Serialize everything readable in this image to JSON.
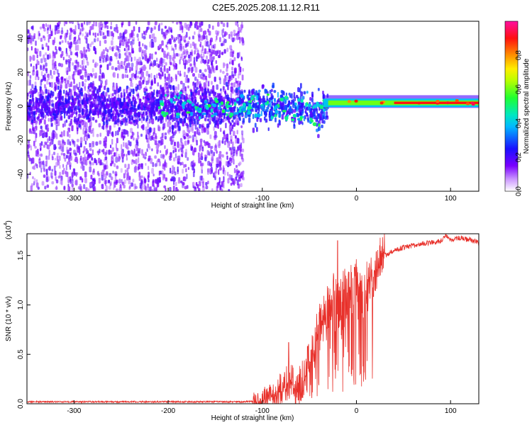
{
  "title": "C2E5.2025.208.11.12.R11",
  "colors": {
    "snr_line": "#e8302a",
    "spectrogram_noise": "#7a28e0",
    "spectrogram_peak": "#ff2020"
  },
  "colorbar": {
    "label": "Normalized spectral amplitude",
    "ticks": [
      "0.0",
      "0.2",
      "0.4",
      "0.6",
      "0.8"
    ],
    "tick_values": [
      0.0,
      0.2,
      0.4,
      0.6,
      0.8
    ],
    "range": [
      0,
      1
    ],
    "colormap": "rainbow (white → violet → blue → cyan → green → yellow → orange → red → magenta)"
  },
  "chart_data": [
    {
      "type": "heatmap",
      "xlabel": "Height of straight line (km)",
      "ylabel": "Frequency (Hz)",
      "xlim": [
        -350,
        130
      ],
      "ylim": [
        -50,
        50
      ],
      "xticks": [
        -300,
        -200,
        -100,
        0,
        100
      ],
      "xtick_labels": [
        "-300",
        "-200",
        "-100",
        "0",
        "100"
      ],
      "yticks": [
        -40,
        -20,
        0,
        20,
        40
      ],
      "ytick_labels": [
        "-40",
        "-20",
        "0",
        "20",
        "40"
      ],
      "description_of_signal": {
        "noise_region_x": [
          -350,
          -120
        ],
        "main_band_center_hz": 0,
        "strong_line_x": [
          -35,
          130
        ],
        "strong_line_freq_hz": 2
      },
      "grid": false
    },
    {
      "type": "line",
      "xlabel": "Height of straight line (km)",
      "ylabel": "SNR (10 * v/v)",
      "y_multiplier_label": "(x10",
      "y_multiplier_exp": "4",
      "xlim": [
        -350,
        130
      ],
      "ylim": [
        0,
        1.72
      ],
      "xticks": [
        -300,
        -200,
        -100,
        0,
        100
      ],
      "xtick_labels": [
        "-300",
        "-200",
        "-100",
        "0",
        "100"
      ],
      "yticks": [
        0.0,
        0.5,
        1.0,
        1.5
      ],
      "ytick_labels": [
        "0.0",
        "0.5",
        "1.0",
        "1.5"
      ],
      "series": [
        {
          "x": [
            -350,
            -300,
            -250,
            -200,
            -150,
            -120,
            -100,
            -90,
            -80,
            -75,
            -70,
            -65,
            -60,
            -55,
            -50,
            -45,
            -40,
            -35,
            -30,
            -25,
            -20,
            -15,
            -10,
            -5,
            0,
            5,
            10,
            15,
            20,
            25,
            30,
            40,
            50,
            60,
            70,
            80,
            90,
            95,
            100,
            110,
            120,
            130
          ],
          "y": [
            0.02,
            0.02,
            0.02,
            0.02,
            0.02,
            0.02,
            0.03,
            0.08,
            0.15,
            0.2,
            0.25,
            0.12,
            0.2,
            0.3,
            0.42,
            0.55,
            0.75,
            0.9,
            1.0,
            1.05,
            1.0,
            1.05,
            1.1,
            1.15,
            1.18,
            1.15,
            1.2,
            1.25,
            1.35,
            1.45,
            1.5,
            1.55,
            1.58,
            1.6,
            1.62,
            1.63,
            1.65,
            1.7,
            1.65,
            1.68,
            1.66,
            1.63
          ],
          "peaks": [
            {
              "x": -72,
              "y": 0.62
            },
            {
              "x": -52,
              "y": 0.58
            },
            {
              "x": -20,
              "y": 1.65
            },
            {
              "x": -2,
              "y": 1.38
            },
            {
              "x": 8,
              "y": 0.32
            }
          ]
        }
      ],
      "grid": false
    }
  ]
}
